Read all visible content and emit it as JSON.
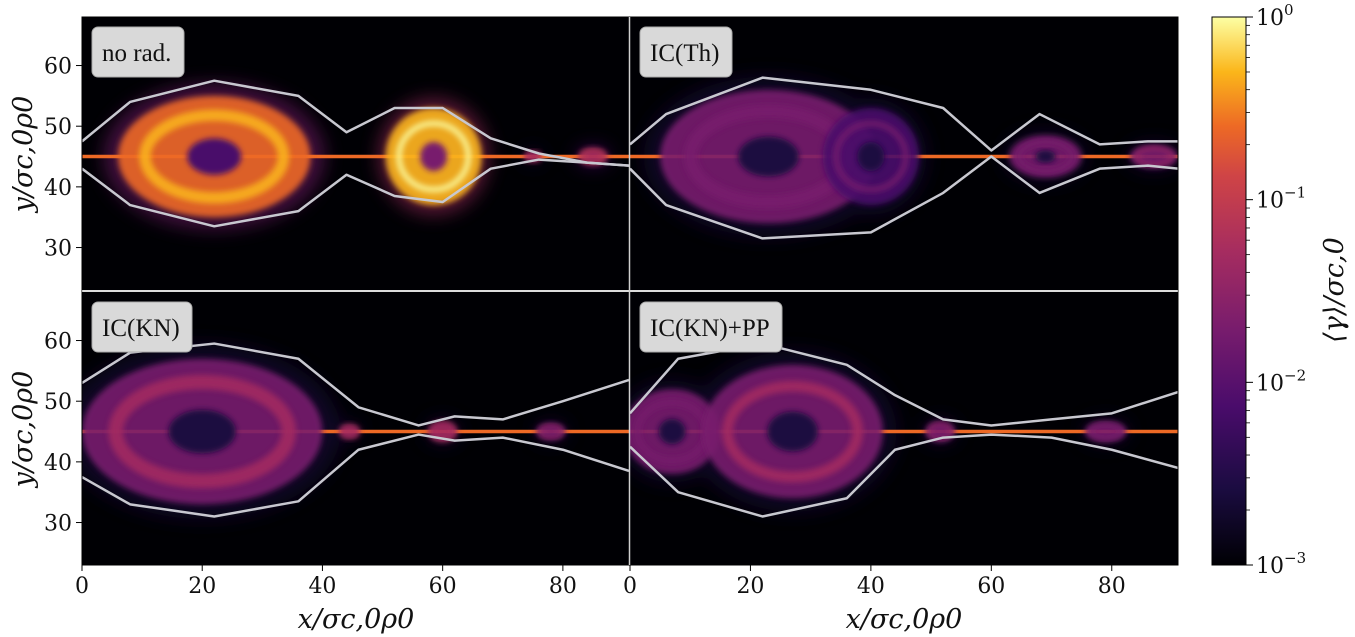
{
  "chart_data": {
    "type": "heatmap",
    "panels": [
      {
        "label": "no rad.",
        "row": 0,
        "col": 0
      },
      {
        "label": "IC(Th)",
        "row": 0,
        "col": 1
      },
      {
        "label": "IC(KN)",
        "row": 1,
        "col": 0
      },
      {
        "label": "IC(KN)+PP",
        "row": 1,
        "col": 1
      }
    ],
    "xlabel": "x/σc,0ρ0",
    "ylabel": "y/σc,0ρ0",
    "colorbar_label": "⟨γ⟩/σc,0",
    "x_ticks": [
      "0",
      "20",
      "40",
      "60",
      "80"
    ],
    "y_ticks": [
      "30",
      "40",
      "50",
      "60"
    ],
    "colorbar_ticks": [
      "10^0",
      "10^-1",
      "10^-2",
      "10^-3"
    ],
    "xlim": [
      0,
      91
    ],
    "ylim": [
      23,
      68
    ],
    "colorbar_range": [
      0.001,
      1
    ],
    "colorbar_scale": "log",
    "colormap": "inferno",
    "grid": false,
    "plasmoids": [
      [
        {
          "x": 22,
          "rx": 16,
          "ry": 10,
          "intensity": 0.8
        },
        {
          "x": 58.5,
          "rx": 8,
          "ry": 8,
          "intensity": 0.95
        },
        {
          "x": 75,
          "rx": 1.5,
          "ry": 1,
          "intensity": 0.6
        },
        {
          "x": 85,
          "rx": 2.5,
          "ry": 1.5,
          "intensity": 0.7
        }
      ],
      [
        {
          "x": 23,
          "rx": 18,
          "ry": 11,
          "intensity": 0.45
        },
        {
          "x": 40,
          "rx": 8,
          "ry": 8,
          "intensity": 0.4
        },
        {
          "x": 69,
          "rx": 6,
          "ry": 3.5,
          "intensity": 0.45
        },
        {
          "x": 87,
          "rx": 4,
          "ry": 2,
          "intensity": 0.5
        }
      ],
      [
        {
          "x": 20,
          "rx": 20,
          "ry": 12,
          "intensity": 0.55
        },
        {
          "x": 44.5,
          "rx": 1.8,
          "ry": 1.3,
          "intensity": 0.6
        },
        {
          "x": 60,
          "rx": 2.5,
          "ry": 1.8,
          "intensity": 0.6
        },
        {
          "x": 78,
          "rx": 2.5,
          "ry": 1.5,
          "intensity": 0.55
        }
      ],
      [
        {
          "x": 7,
          "rx": 8,
          "ry": 7,
          "intensity": 0.45
        },
        {
          "x": 27,
          "rx": 15,
          "ry": 11,
          "intensity": 0.5
        },
        {
          "x": 51.5,
          "rx": 2.5,
          "ry": 1.8,
          "intensity": 0.5
        },
        {
          "x": 79,
          "rx": 3.5,
          "ry": 1.8,
          "intensity": 0.45
        }
      ]
    ],
    "separatrix": [
      {
        "x": [
          0,
          8,
          22,
          36,
          44,
          52,
          60,
          68,
          76,
          84,
          91
        ],
        "upper": [
          47.5,
          54,
          57.5,
          55,
          49,
          53,
          53,
          48,
          45.5,
          44,
          43.5
        ],
        "lower": [
          43,
          37,
          33.5,
          36,
          42,
          38.5,
          37.5,
          43,
          44.5,
          44,
          43.5
        ]
      },
      {
        "x": [
          0,
          6,
          22,
          40,
          52,
          60,
          68,
          78,
          86,
          91
        ],
        "upper": [
          47,
          52,
          58,
          56,
          53,
          46,
          52,
          47,
          47.5,
          47.5
        ],
        "lower": [
          43,
          37,
          31.5,
          32.5,
          39,
          45,
          39,
          43,
          43.5,
          43
        ],
        "upper2": [],
        "lower2": []
      },
      {
        "x": [
          0,
          8,
          22,
          36,
          46,
          56,
          62,
          70,
          80,
          91
        ],
        "upper": [
          53,
          58,
          59.5,
          57,
          49,
          46,
          47.5,
          47,
          50,
          53.5
        ],
        "lower": [
          37.5,
          33,
          31,
          33.5,
          42,
          44.5,
          43.5,
          44,
          42,
          38.5
        ]
      },
      {
        "x": [
          0,
          8,
          22,
          36,
          44,
          52,
          60,
          70,
          80,
          91
        ],
        "upper": [
          48,
          57,
          59.5,
          56,
          51,
          47,
          46,
          47,
          48,
          51.5
        ],
        "lower": [
          42.5,
          35,
          31,
          34,
          42,
          44,
          44.5,
          44,
          42,
          39
        ]
      }
    ]
  }
}
